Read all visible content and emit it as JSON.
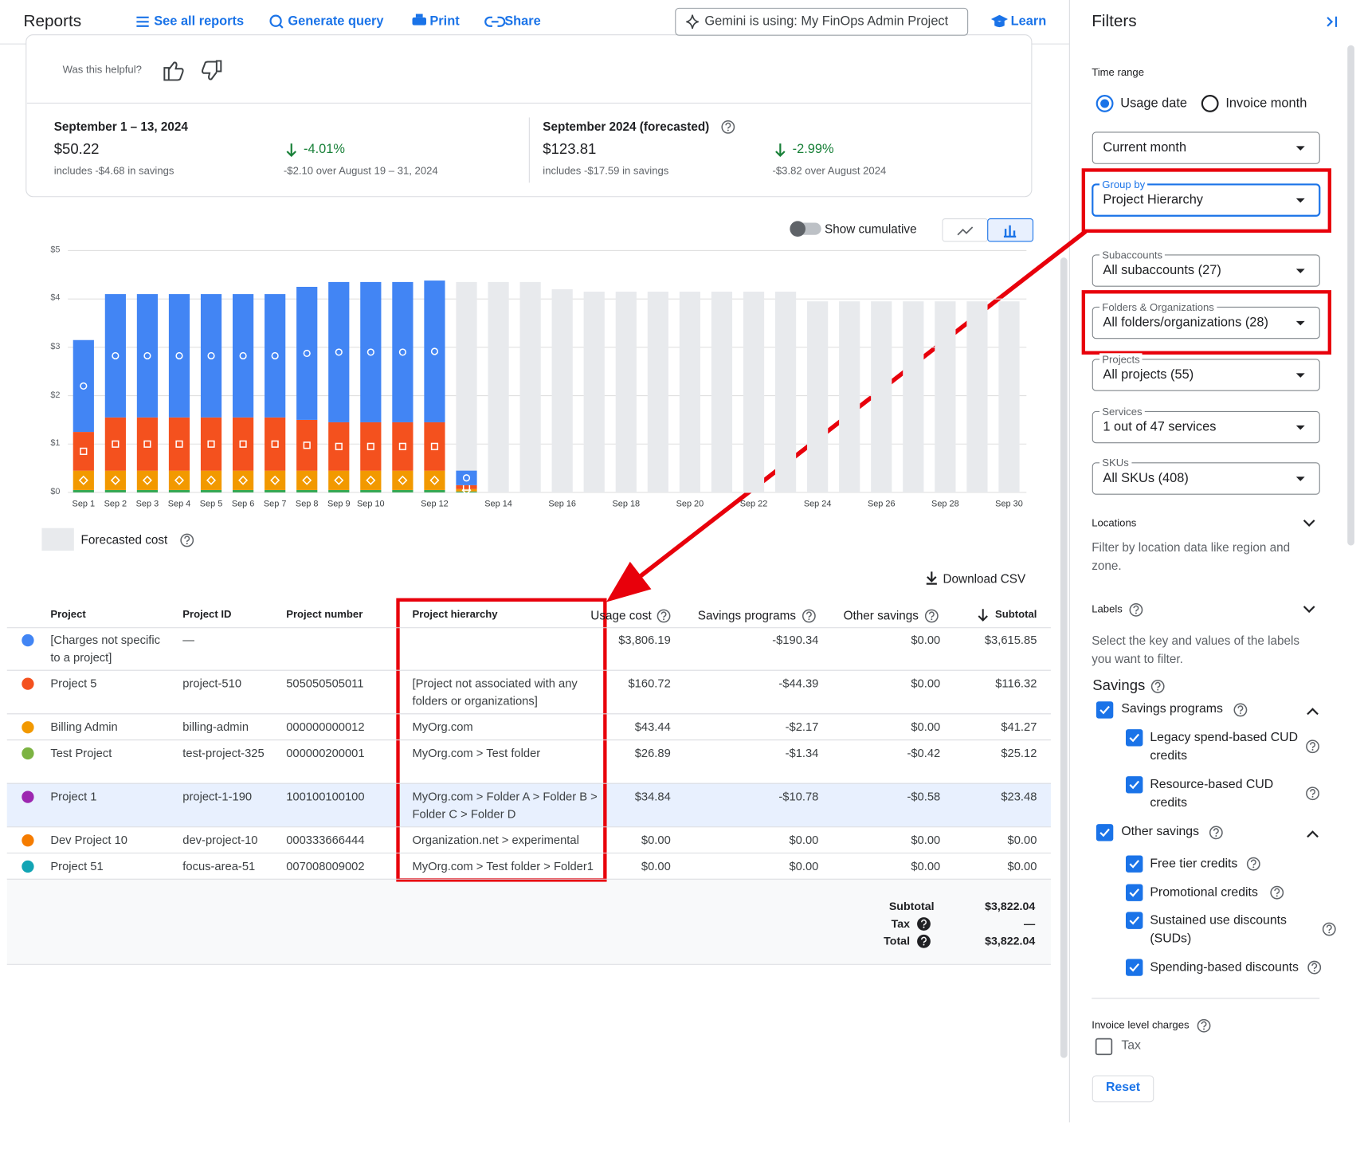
{
  "header": {
    "title": "Reports",
    "links": [
      "See all reports",
      "Generate query",
      "Print",
      "Share"
    ],
    "gemini": "Gemini is using: My FinOps Admin Project",
    "learn": "Learn"
  },
  "feedback": "Was this helpful?",
  "summary": [
    {
      "period": "September 1 – 13, 2024",
      "amount": "$50.22",
      "savings": "includes -$4.68 in savings",
      "change": "-4.01%",
      "comparison": "-$2.10 over August 19 – 31, 2024"
    },
    {
      "period": "September 2024 (forecasted)",
      "amount": "$123.81",
      "savings": "includes -$17.59 in savings",
      "change": "-2.99%",
      "comparison": "-$3.82 over August 2024"
    }
  ],
  "chart_toggle": "Show cumulative",
  "chart_data": {
    "type": "bar",
    "stacked": true,
    "categories": [
      "Sep 1",
      "Sep 2",
      "Sep 3",
      "Sep 4",
      "Sep 5",
      "Sep 6",
      "Sep 7",
      "Sep 8",
      "Sep 9",
      "Sep 10",
      null,
      "Sep 12",
      null,
      "Sep 14",
      null,
      "Sep 16",
      null,
      "Sep 18",
      null,
      "Sep 20",
      null,
      "Sep 22",
      null,
      "Sep 24",
      null,
      "Sep 26",
      null,
      "Sep 28",
      null,
      "Sep 30"
    ],
    "series": [
      {
        "color": "#34a853",
        "marker": "none",
        "values": [
          0.05,
          0.05,
          0.05,
          0.05,
          0.05,
          0.05,
          0.05,
          0.05,
          0.05,
          0.05,
          0.05,
          0.05,
          0.02,
          null,
          null,
          null,
          null,
          null,
          null,
          null,
          null,
          null,
          null,
          null,
          null,
          null,
          null,
          null,
          null,
          null
        ]
      },
      {
        "color": "#f29900",
        "marker": "diamond",
        "values": [
          0.4,
          0.4,
          0.4,
          0.4,
          0.4,
          0.4,
          0.4,
          0.4,
          0.4,
          0.4,
          0.4,
          0.4,
          0.05,
          null,
          null,
          null,
          null,
          null,
          null,
          null,
          null,
          null,
          null,
          null,
          null,
          null,
          null,
          null,
          null,
          null
        ]
      },
      {
        "color": "#f4511e",
        "marker": "square",
        "values": [
          0.8,
          1.1,
          1.1,
          1.1,
          1.1,
          1.1,
          1.1,
          1.05,
          1.0,
          1.0,
          1.0,
          1.0,
          0.08,
          null,
          null,
          null,
          null,
          null,
          null,
          null,
          null,
          null,
          null,
          null,
          null,
          null,
          null,
          null,
          null,
          null
        ]
      },
      {
        "color": "#4285f4",
        "marker": "circle",
        "values": [
          1.9,
          2.55,
          2.55,
          2.55,
          2.55,
          2.55,
          2.55,
          2.75,
          2.9,
          2.9,
          2.9,
          2.93,
          0.3,
          null,
          null,
          null,
          null,
          null,
          null,
          null,
          null,
          null,
          null,
          null,
          null,
          null,
          null,
          null,
          null,
          null
        ]
      }
    ],
    "forecast": {
      "name": "Forecasted cost",
      "color": "#e8eaed",
      "values": [
        null,
        null,
        null,
        null,
        null,
        null,
        null,
        null,
        null,
        null,
        null,
        null,
        4.35,
        4.35,
        4.35,
        4.2,
        4.15,
        4.15,
        4.15,
        4.15,
        4.15,
        4.15,
        4.15,
        3.95,
        3.95,
        3.95,
        3.95,
        3.95,
        3.95,
        3.95
      ]
    },
    "ylim": [
      0,
      5
    ],
    "yticks": [
      {
        "value": 0,
        "label": "$0"
      },
      {
        "value": 1,
        "label": "$1"
      },
      {
        "value": 2,
        "label": "$2"
      },
      {
        "value": 3,
        "label": "$3"
      },
      {
        "value": 4,
        "label": "$4"
      },
      {
        "value": 5,
        "label": "$5"
      }
    ],
    "grid": true
  },
  "download": "Download CSV",
  "table": {
    "columns": [
      "Project",
      "Project ID",
      "Project number",
      "Project hierarchy",
      "Usage cost",
      "Savings programs",
      "Other savings",
      "Subtotal"
    ],
    "row_colors": [
      "#4285f4",
      "#f4511e",
      "#f29900",
      "#7cb342",
      "#9c27b0",
      "#f57c00",
      "#12a4b4"
    ],
    "rows": [
      [
        "[Charges not specific to a project]",
        "—",
        null,
        null,
        "$3,806.19",
        "-$190.34",
        "$0.00",
        "$3,615.85"
      ],
      [
        "Project 5",
        "project-510",
        "505050505011",
        "[Project not associated with any folders or organizations]",
        "$160.72",
        "-$44.39",
        "$0.00",
        "$116.32"
      ],
      [
        "Billing Admin",
        "billing-admin",
        "000000000012",
        "MyOrg.com",
        "$43.44",
        "-$2.17",
        "$0.00",
        "$41.27"
      ],
      [
        "Test Project",
        "test-project-325",
        "000000200001",
        "MyOrg.com > Test folder",
        "$26.89",
        "-$1.34",
        "-$0.42",
        "$25.12"
      ],
      [
        "Project 1",
        "project-1-190",
        "100100100100",
        "MyOrg.com > Folder A > Folder B > Folder C > Folder D",
        "$34.84",
        "-$10.78",
        "-$0.58",
        "$23.48"
      ],
      [
        "Dev Project 10",
        "dev-project-10",
        "000333666444",
        "Organization.net > experimental",
        "$0.00",
        "$0.00",
        "$0.00",
        "$0.00"
      ],
      [
        "Project 51",
        "focus-area-51",
        "007008009002",
        "MyOrg.com > Test folder > Folder1",
        "$0.00",
        "$0.00",
        "$0.00",
        "$0.00"
      ]
    ],
    "totals": [
      [
        "Subtotal",
        "$3,822.04"
      ],
      [
        "Tax",
        "—"
      ],
      [
        "Total",
        "$3,822.04"
      ]
    ]
  },
  "filters": {
    "title": "Filters",
    "time_range": {
      "label": "Time range",
      "options": [
        "Usage date",
        "Invoice month"
      ],
      "selected": 0
    },
    "selects": [
      {
        "value": "Current month"
      },
      {
        "label": "Group by",
        "value": "Project Hierarchy"
      },
      {
        "label": "Subaccounts",
        "value": "All subaccounts (27)"
      },
      {
        "label": "Folders & Organizations",
        "value": "All folders/organizations (28)"
      },
      {
        "label": "Projects",
        "value": "All projects (55)"
      },
      {
        "label": "Services",
        "value": "1 out of 47 services"
      },
      {
        "label": "SKUs",
        "value": "All SKUs (408)"
      }
    ],
    "locations": {
      "title": "Locations",
      "description": "Filter by location data like region and zone."
    },
    "labels": {
      "title": "Labels",
      "description": "Select the key and values of the labels you want to filter."
    },
    "savings": {
      "title": "Savings",
      "groups": [
        {
          "label": "Savings programs",
          "items": [
            "Legacy spend-based CUD credits",
            "Resource-based CUD credits"
          ]
        },
        {
          "label": "Other savings",
          "items": [
            "Free tier credits",
            "Promotional credits",
            "Sustained use discounts (SUDs)",
            "Spending-based discounts"
          ]
        }
      ]
    },
    "invoice": {
      "title": "Invoice level charges",
      "option": "Tax"
    },
    "reset": "Reset"
  }
}
